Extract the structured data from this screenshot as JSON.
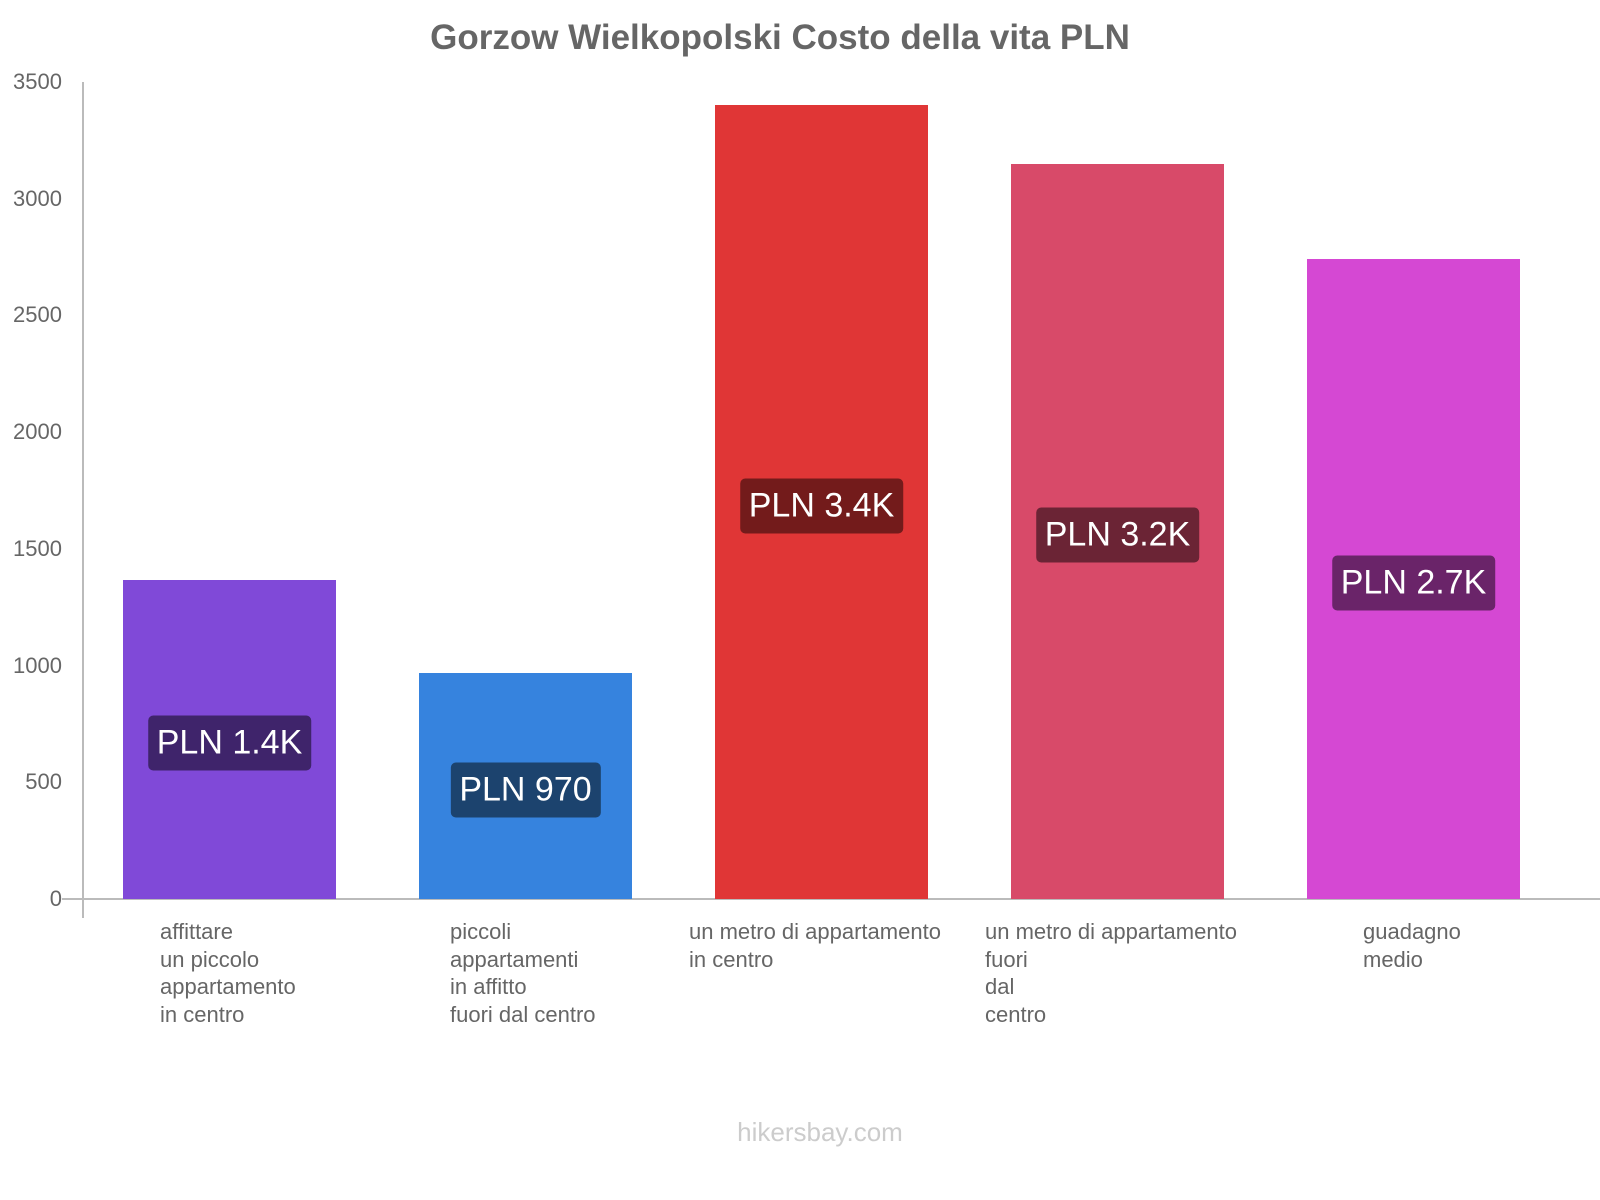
{
  "chart_data": {
    "type": "bar",
    "title": "Gorzow Wielkopolski Costo della vita PLN",
    "xlabel": "",
    "ylabel": "",
    "ylim": [
      0,
      3500
    ],
    "yticks": [
      0,
      500,
      1000,
      1500,
      2000,
      2500,
      3000,
      3500
    ],
    "grid": false,
    "legend": null,
    "categories": [
      "affittare un piccolo appartamento in centro",
      "piccoli appartamenti in affitto fuori dal centro",
      "un metro di appartamento in centro",
      "un metro di appartamento fuori dal centro",
      "guadagno medio"
    ],
    "values": [
      1367,
      970,
      3400,
      3150,
      2740
    ],
    "value_labels": [
      "PLN 1.4K",
      "PLN 970",
      "PLN 3.4K",
      "PLN 3.2K",
      "PLN 2.7K"
    ],
    "colors": [
      "#8049d8",
      "#3683de",
      "#e03636",
      "#d84a69",
      "#d548d3"
    ],
    "label_bg_colors": [
      "#3f246b",
      "#1c436e",
      "#731b1b",
      "#6b2435",
      "#6a2469"
    ]
  },
  "title": "Gorzow Wielkopolski Costo della vita PLN",
  "y_ticks": [
    "0",
    "500",
    "1000",
    "1500",
    "2000",
    "2500",
    "3000",
    "3500"
  ],
  "x_labels": [
    "affittare\nun piccolo\nappartamento\nin centro",
    "piccoli\nappartamenti\nin affitto\nfuori dal centro",
    "un metro di appartamento\nin centro",
    "un metro di appartamento\nfuori\ndal\ncentro",
    "guadagno\nmedio"
  ],
  "watermark": "hikersbay.com"
}
